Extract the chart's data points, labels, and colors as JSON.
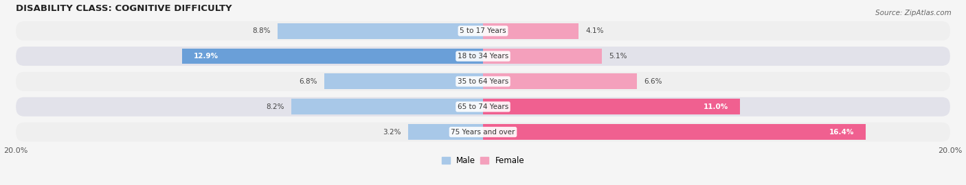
{
  "title": "DISABILITY CLASS: COGNITIVE DIFFICULTY",
  "source": "Source: ZipAtlas.com",
  "categories": [
    "5 to 17 Years",
    "18 to 34 Years",
    "35 to 64 Years",
    "65 to 74 Years",
    "75 Years and over"
  ],
  "male_values": [
    8.8,
    12.9,
    6.8,
    8.2,
    3.2
  ],
  "female_values": [
    4.1,
    5.1,
    6.6,
    11.0,
    16.4
  ],
  "max_val": 20.0,
  "male_color_dark": "#6a9fd8",
  "male_color_light": "#a8c8e8",
  "female_color_dark": "#f06090",
  "female_color_light": "#f4a0bc",
  "row_bg_light": "#efefef",
  "row_bg_dark": "#e2e2ea",
  "bar_height": 0.62,
  "legend_male": "Male",
  "legend_female": "Female"
}
